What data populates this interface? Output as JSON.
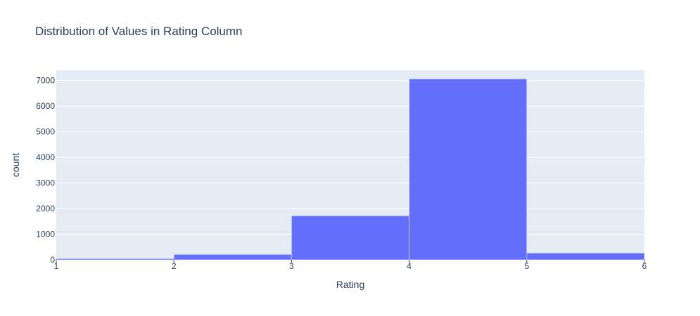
{
  "chart_data": {
    "type": "bar",
    "title": "Distribution of Values in Rating Column",
    "xlabel": "Rating",
    "ylabel": "count",
    "bins": [
      {
        "start": 1,
        "end": 2,
        "count": 45
      },
      {
        "start": 2,
        "end": 3,
        "count": 210
      },
      {
        "start": 3,
        "end": 4,
        "count": 1720
      },
      {
        "start": 4,
        "end": 5,
        "count": 7060
      },
      {
        "start": 5,
        "end": 6,
        "count": 265
      }
    ],
    "xlim": [
      1,
      6
    ],
    "ylim": [
      0,
      7400
    ],
    "x_ticks": [
      "1",
      "2",
      "3",
      "4",
      "5",
      "6"
    ],
    "y_ticks": [
      "0",
      "1000",
      "2000",
      "3000",
      "4000",
      "5000",
      "6000",
      "7000"
    ],
    "grid": true,
    "colors": {
      "bar": "#636efa",
      "plot_background": "#e5ecf6",
      "gridline": "#ffffff",
      "text": "#2a3f5f"
    }
  }
}
